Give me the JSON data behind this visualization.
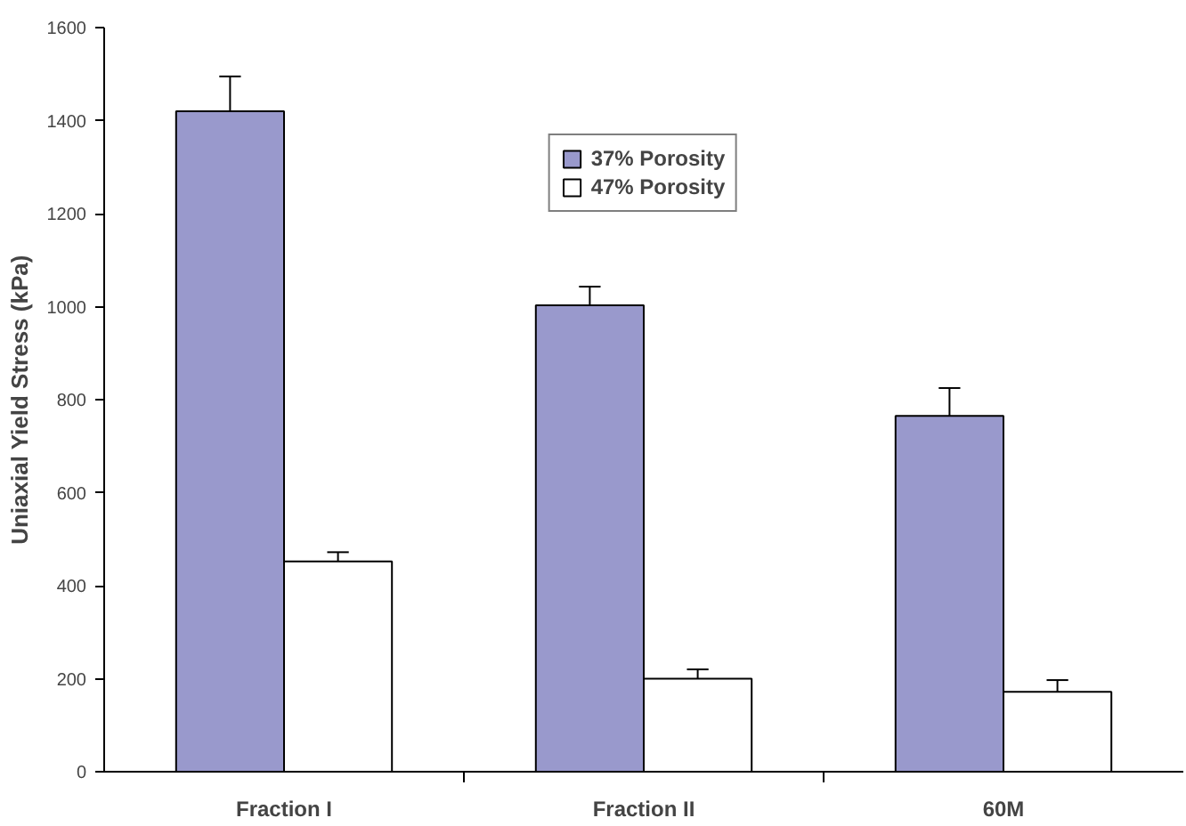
{
  "chart_data": {
    "type": "bar",
    "ylabel": "Uniaxial Yield Stress (kPa)",
    "categories": [
      "Fraction I",
      "Fraction II",
      "60M"
    ],
    "series": [
      {
        "name": "37% Porosity",
        "color": "#9999cc",
        "values": [
          1420,
          1003,
          765
        ],
        "errors": [
          [
            1420,
            1495
          ],
          [
            1003,
            1043
          ],
          [
            765,
            825
          ]
        ]
      },
      {
        "name": "47% Porosity",
        "color": "#ffffff",
        "values": [
          452,
          200,
          172
        ],
        "errors": [
          [
            452,
            472
          ],
          [
            200,
            220
          ],
          [
            172,
            197
          ]
        ]
      }
    ],
    "ylim": [
      0,
      1600
    ],
    "yticks": [
      0,
      200,
      400,
      600,
      800,
      1000,
      1200,
      1400,
      1600
    ],
    "grid": false,
    "legend": "top"
  }
}
